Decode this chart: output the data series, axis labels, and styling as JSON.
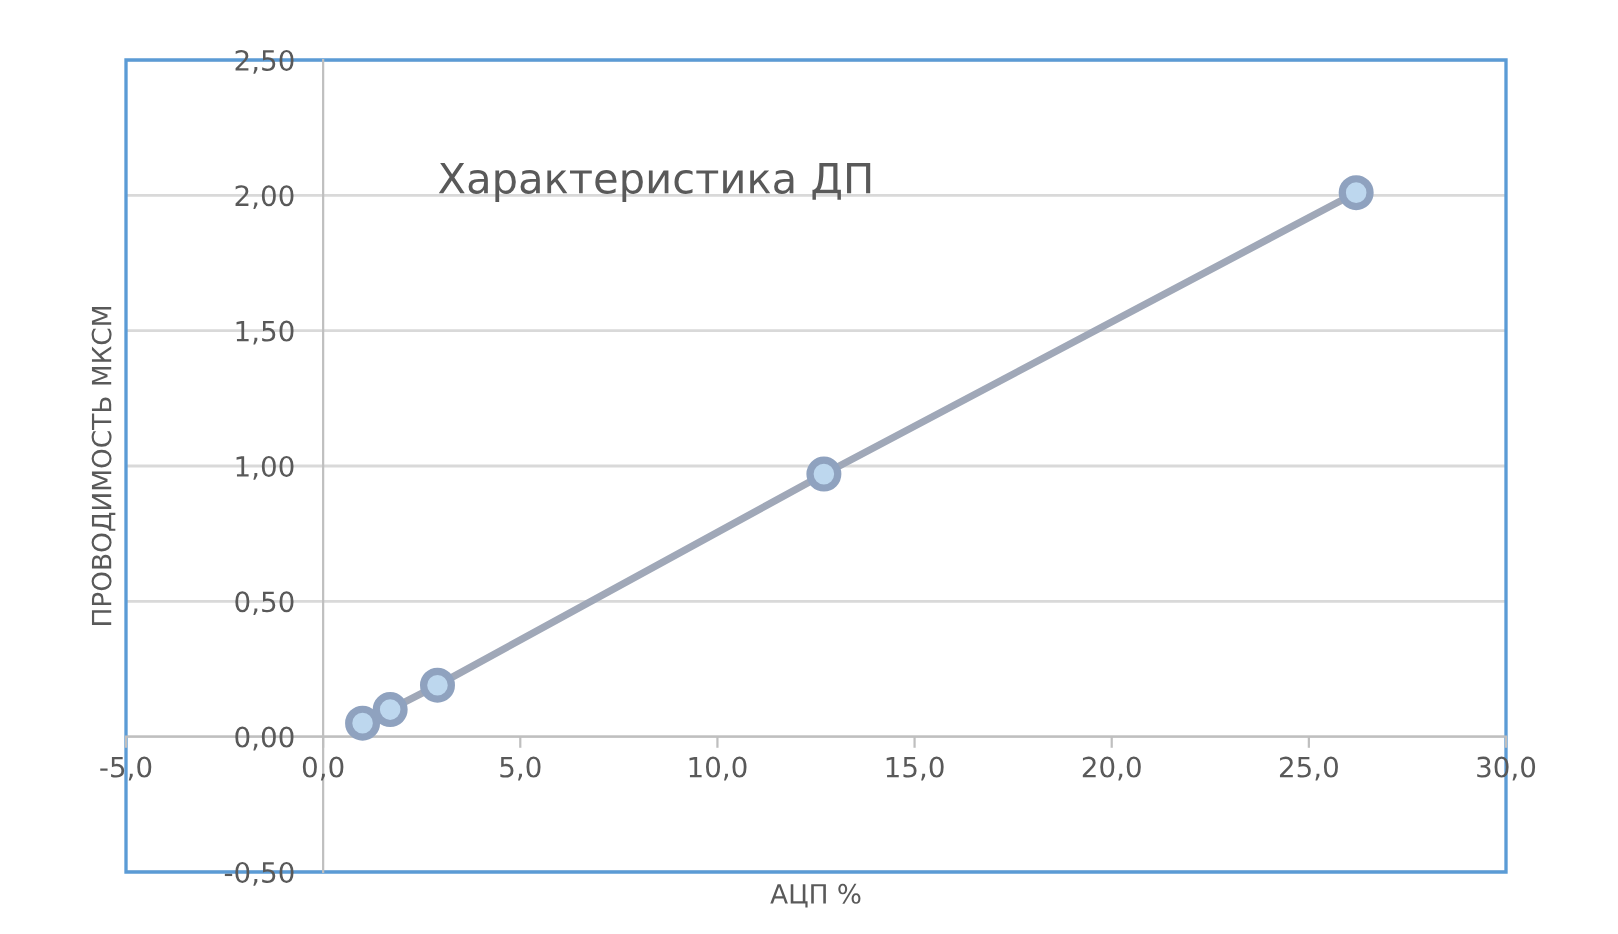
{
  "chart_data": {
    "type": "line",
    "title": "Характеристика ДП",
    "xlabel": "АЦП %",
    "ylabel": "ПРОВОДИМОСТЬ МКСМ",
    "x": [
      1.0,
      1.7,
      2.9,
      12.7,
      26.2
    ],
    "series": [
      {
        "color": "#a0a8b8",
        "values": [
          0.05,
          0.1,
          0.19,
          0.97,
          2.01
        ]
      }
    ],
    "xlim": [
      -5,
      30
    ],
    "ylim": [
      -0.5,
      2.5
    ],
    "xticks": [
      {
        "value": -5,
        "label": "-5,0"
      },
      {
        "value": 0,
        "label": "0,0"
      },
      {
        "value": 5,
        "label": "5,0"
      },
      {
        "value": 10,
        "label": "10,0"
      },
      {
        "value": 15,
        "label": "15,0"
      },
      {
        "value": 20,
        "label": "20,0"
      },
      {
        "value": 25,
        "label": "25,0"
      },
      {
        "value": 30,
        "label": "30,0"
      }
    ],
    "yticks": [
      {
        "value": -0.5,
        "label": "-0,50"
      },
      {
        "value": 0,
        "label": "0,00"
      },
      {
        "value": 0.5,
        "label": "0,50"
      },
      {
        "value": 1,
        "label": "1,00"
      },
      {
        "value": 1.5,
        "label": "1,50"
      },
      {
        "value": 2,
        "label": "2,00"
      },
      {
        "value": 2.5,
        "label": "2,50"
      }
    ],
    "grid": "y",
    "marker": "circle",
    "line_style": "solid"
  }
}
